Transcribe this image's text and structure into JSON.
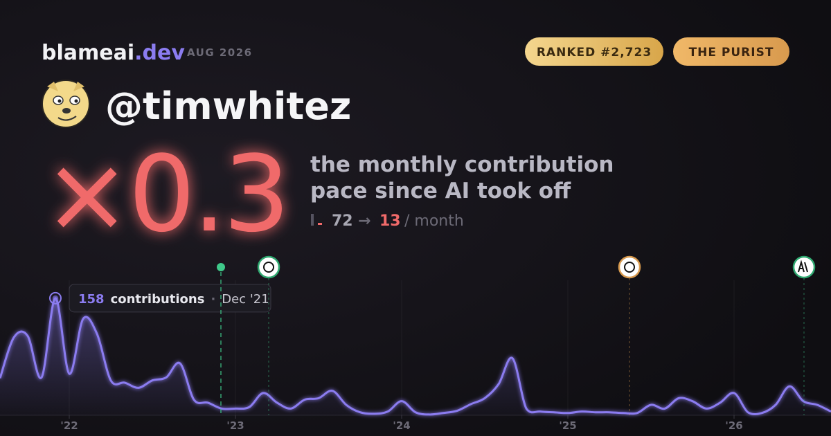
{
  "header": {
    "brand": "blameai",
    "brand_suffix": ".dev",
    "date": "AUG 2026",
    "badges": [
      "RANKED #2,723",
      "THE PURIST"
    ]
  },
  "profile": {
    "handle": "@timwhitez"
  },
  "headline": {
    "multiplier": "×0.3",
    "description": [
      "the monthly contribution",
      "pace since AI took off"
    ],
    "before": "72",
    "arrow": "→",
    "after": "13",
    "unit": "/ month"
  },
  "chart_data": {
    "type": "line",
    "categories": [
      null,
      null,
      null,
      null,
      null,
      "'22",
      null,
      null,
      null,
      null,
      null,
      null,
      null,
      null,
      null,
      null,
      null,
      "'23",
      null,
      null,
      null,
      null,
      null,
      null,
      null,
      null,
      null,
      null,
      null,
      "'24",
      null,
      null,
      null,
      null,
      null,
      null,
      null,
      null,
      null,
      null,
      null,
      "'25",
      null,
      null,
      null,
      null,
      null,
      null,
      null,
      null,
      null,
      null,
      null,
      "'26",
      null,
      null,
      null,
      null,
      null,
      null,
      null
    ],
    "values": [
      50,
      105,
      107,
      51,
      158,
      56,
      130,
      110,
      47,
      44,
      37,
      47,
      51,
      70,
      21,
      17,
      9,
      9,
      11,
      30,
      17,
      9,
      21,
      23,
      33,
      14,
      4,
      2,
      5,
      19,
      4,
      1,
      3,
      6,
      15,
      23,
      42,
      77,
      9,
      5,
      4,
      3,
      5,
      4,
      4,
      3,
      3,
      14,
      9,
      23,
      19,
      9,
      17,
      30,
      4,
      3,
      14,
      39,
      19,
      14,
      5
    ],
    "color": "#8b7cf0",
    "ylim": [
      0,
      170
    ],
    "tooltip": {
      "unit": "contributions",
      "separator": "·",
      "date": "Dec '21"
    }
  }
}
